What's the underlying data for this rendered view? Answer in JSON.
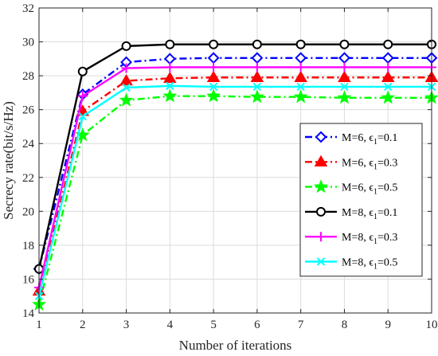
{
  "chart_data": {
    "type": "line",
    "xlabel": "Number of iterations",
    "ylabel": "Secrecy rate(bit/s/Hz)",
    "x": [
      1,
      2,
      3,
      4,
      5,
      6,
      7,
      8,
      9,
      10
    ],
    "xlim": [
      1,
      10
    ],
    "ylim": [
      14,
      32
    ],
    "xticks": [
      1,
      2,
      3,
      4,
      5,
      6,
      7,
      8,
      9,
      10
    ],
    "yticks": [
      14,
      16,
      18,
      20,
      22,
      24,
      26,
      28,
      30,
      32
    ],
    "grid": true,
    "legend_position": "right",
    "series": [
      {
        "name": "M=6, ε1=0.1",
        "label_main": "M=6, ",
        "label_sub": "1",
        "label_val": "=0.1",
        "color": "#0000ff",
        "dash": "dashdot",
        "marker": "diamond",
        "values": [
          16.6,
          26.9,
          28.8,
          29.0,
          29.05,
          29.05,
          29.05,
          29.05,
          29.05,
          29.05
        ]
      },
      {
        "name": "M=6, ε1=0.3",
        "label_main": "M=6, ",
        "label_sub": "1",
        "label_val": "=0.3",
        "color": "#ff0000",
        "dash": "dashdot",
        "marker": "triangle",
        "values": [
          15.3,
          25.9,
          27.7,
          27.85,
          27.9,
          27.9,
          27.9,
          27.9,
          27.9,
          27.9
        ]
      },
      {
        "name": "M=6, ε1=0.5",
        "label_main": "M=6, ",
        "label_sub": "1",
        "label_val": "=0.5",
        "color": "#00ff00",
        "dash": "dashdot",
        "marker": "star",
        "values": [
          14.5,
          24.5,
          26.55,
          26.8,
          26.8,
          26.75,
          26.75,
          26.7,
          26.7,
          26.7
        ]
      },
      {
        "name": "M=8, ε1=0.1",
        "label_main": "M=8, ",
        "label_sub": "1",
        "label_val": "=0.1",
        "color": "#000000",
        "dash": "solid",
        "marker": "circle",
        "values": [
          16.6,
          28.25,
          29.75,
          29.85,
          29.85,
          29.85,
          29.85,
          29.85,
          29.85,
          29.85
        ]
      },
      {
        "name": "M=8, ε1=0.3",
        "label_main": "M=8, ",
        "label_sub": "1",
        "label_val": "=0.3",
        "color": "#ff00ff",
        "dash": "solid",
        "marker": "plus",
        "values": [
          15.5,
          26.8,
          28.45,
          28.5,
          28.5,
          28.5,
          28.5,
          28.5,
          28.5,
          28.5
        ]
      },
      {
        "name": "M=8, ε1=0.5",
        "label_main": "M=8, ",
        "label_sub": "1",
        "label_val": "=0.5",
        "color": "#00ffff",
        "dash": "solid",
        "marker": "x",
        "values": [
          15.0,
          25.6,
          27.3,
          27.4,
          27.35,
          27.35,
          27.35,
          27.35,
          27.35,
          27.35
        ]
      }
    ]
  }
}
